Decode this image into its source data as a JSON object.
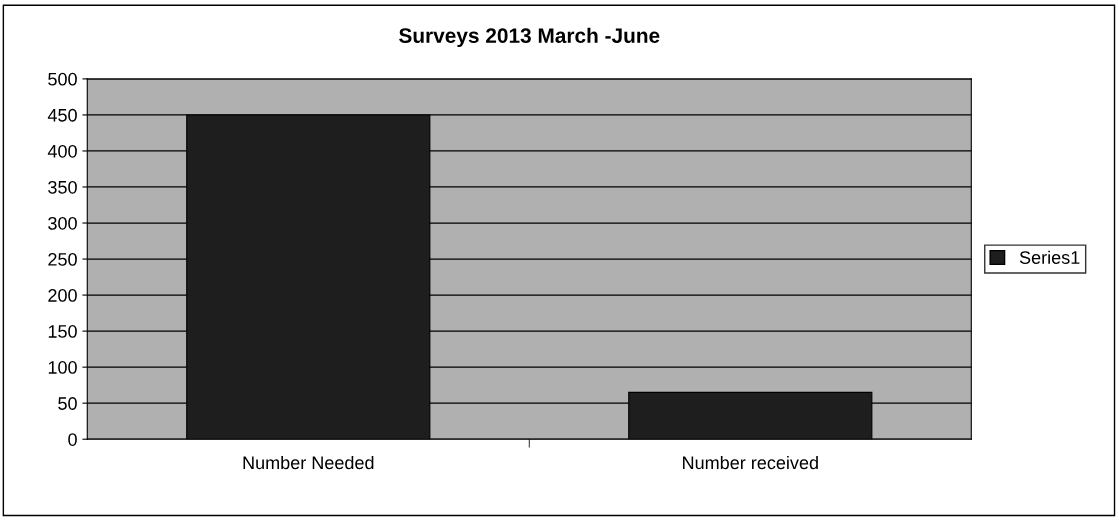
{
  "chart_data": {
    "type": "bar",
    "title": "Surveys 2013 March -June",
    "categories": [
      "Number Needed",
      "Number received"
    ],
    "series": [
      {
        "name": "Series1",
        "color": "#1e1e1e",
        "values": [
          450,
          65
        ]
      }
    ],
    "ylim": [
      0,
      500
    ],
    "yticks": [
      0,
      50,
      100,
      150,
      200,
      250,
      300,
      350,
      400,
      450,
      500
    ],
    "grid": "y",
    "legend": "right"
  }
}
